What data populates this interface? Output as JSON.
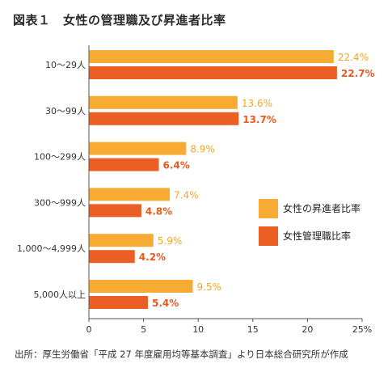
{
  "title": "図表１　女性の管理職及び昇進者比率",
  "source": "出所：厚生労働省「平成 27 年度雇用均等基本調査」より日本総合研究所が作成",
  "colors": {
    "series_a": "#f8ab33",
    "series_b": "#ec5f24",
    "value_a": "#f6a623",
    "value_b": "#e85a1f",
    "axis": "#555555"
  },
  "chart_data": {
    "type": "bar",
    "orientation": "horizontal",
    "categories": [
      "10〜29人",
      "30〜99人",
      "100〜299人",
      "300〜999人",
      "1,000〜4,999人",
      "5,000人以上"
    ],
    "series": [
      {
        "name": "女性の昇進者比率",
        "values": [
          22.4,
          13.6,
          8.9,
          7.4,
          5.9,
          9.5
        ],
        "labels": [
          "22.4%",
          "13.6%",
          "8.9%",
          "7.4%",
          "5.9%",
          "9.5%"
        ]
      },
      {
        "name": "女性管理職比率",
        "values": [
          22.7,
          13.7,
          6.4,
          4.8,
          4.2,
          5.4
        ],
        "labels": [
          "22.7%",
          "13.7%",
          "6.4%",
          "4.8%",
          "4.2%",
          "5.4%"
        ]
      }
    ],
    "xlim": [
      0,
      25
    ],
    "xticks": [
      "0",
      "5",
      "10",
      "15",
      "20",
      "25%"
    ],
    "grid": false,
    "legend_position": "right"
  }
}
